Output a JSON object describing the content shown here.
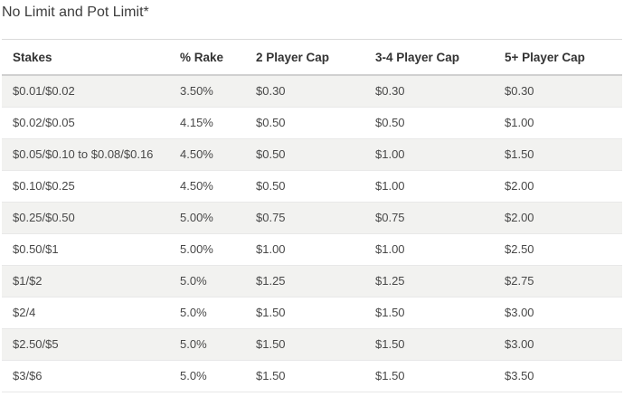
{
  "page": {
    "title": "No Limit and Pot Limit*"
  },
  "colors": {
    "stripe_row_bg": "#f2f2f0",
    "row_border": "#e8e8e8",
    "header_border": "#d0d0d0",
    "table_top_border": "#dadada",
    "header_text": "#333333",
    "body_text": "#484848",
    "title_text": "#3d3d3d",
    "page_bg": "#ffffff"
  },
  "table": {
    "columns": [
      "Stakes",
      "% Rake",
      "2 Player Cap",
      "3-4 Player Cap",
      "5+ Player Cap"
    ],
    "rows": [
      [
        "$0.01/$0.02",
        "3.50%",
        "$0.30",
        "$0.30",
        "$0.30"
      ],
      [
        "$0.02/$0.05",
        "4.15%",
        "$0.50",
        "$0.50",
        "$1.00"
      ],
      [
        "$0.05/$0.10 to $0.08/$0.16",
        "4.50%",
        "$0.50",
        "$1.00",
        "$1.50"
      ],
      [
        "$0.10/$0.25",
        "4.50%",
        "$0.50",
        "$1.00",
        "$2.00"
      ],
      [
        "$0.25/$0.50",
        "5.00%",
        "$0.75",
        "$0.75",
        "$2.00"
      ],
      [
        "$0.50/$1",
        "5.00%",
        "$1.00",
        "$1.00",
        "$2.50"
      ],
      [
        "$1/$2",
        "5.0%",
        "$1.25",
        "$1.25",
        "$2.75"
      ],
      [
        "$2/4",
        "5.0%",
        "$1.50",
        "$1.50",
        "$3.00"
      ],
      [
        "$2.50/$5",
        "5.0%",
        "$1.50",
        "$1.50",
        "$3.00"
      ],
      [
        "$3/$6",
        "5.0%",
        "$1.50",
        "$1.50",
        "$3.50"
      ]
    ]
  }
}
